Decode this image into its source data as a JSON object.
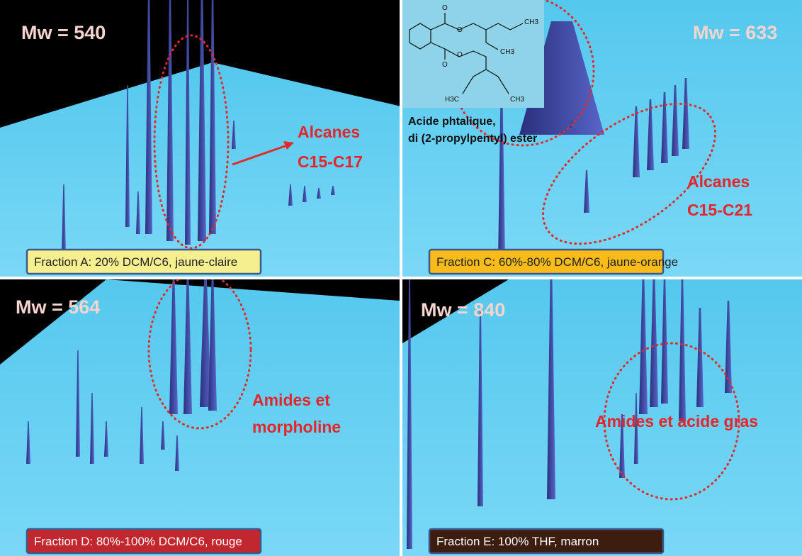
{
  "panels": [
    {
      "mw": "Mw = 540",
      "annotation": [
        "Alcanes",
        "C15-C17"
      ],
      "fraction": "Fraction A: 20% DCM/C6, jaune-claire"
    },
    {
      "mw": "Mw = 633",
      "annotation": [
        "Alcanes",
        "C15-C21"
      ],
      "fraction": "Fraction C:  60%-80% DCM/C6, jaune-orange",
      "structure": {
        "name": [
          "Acide phtalique,",
          "di (2-propylpentyl) ester"
        ],
        "atoms": [
          "O",
          "O",
          "O",
          "O",
          "CH3",
          "CH3",
          "H3C",
          "CH3"
        ]
      }
    },
    {
      "mw": "Mw = 564",
      "annotation": [
        "Amides et",
        "morpholine"
      ],
      "fraction": "Fraction D:  80%-100% DCM/C6, rouge"
    },
    {
      "mw": "Mw = 840",
      "annotation": [
        "Amides et acide gras"
      ],
      "fraction": "Fraction E:  100% THF, marron"
    }
  ]
}
